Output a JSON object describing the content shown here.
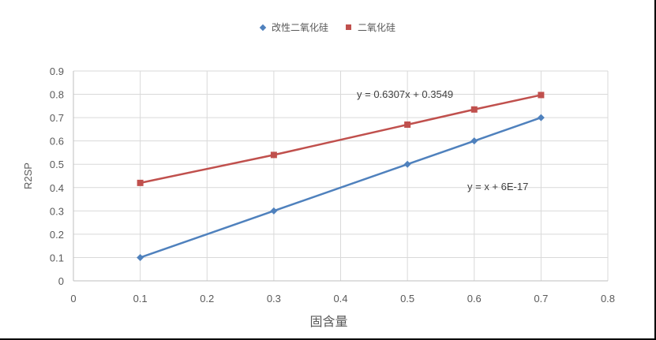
{
  "chart_data": {
    "type": "line",
    "title": "",
    "xlabel": "固含量",
    "ylabel": "R2SP",
    "xlim": [
      0,
      0.8
    ],
    "ylim": [
      0,
      0.9
    ],
    "xticks": [
      0,
      0.1,
      0.2,
      0.3,
      0.4,
      0.5,
      0.6,
      0.7,
      0.8
    ],
    "yticks": [
      0,
      0.1,
      0.2,
      0.3,
      0.4,
      0.5,
      0.6,
      0.7,
      0.8,
      0.9
    ],
    "xtick_labels": [
      "0",
      "0.1",
      "0.2",
      "0.3",
      "0.4",
      "0.5",
      "0.6",
      "0.7",
      "0.8"
    ],
    "ytick_labels": [
      "0",
      "0.1",
      "0.2",
      "0.3",
      "0.4",
      "0.5",
      "0.6",
      "0.7",
      "0.8",
      "0.9"
    ],
    "grid": "vertical-and-horizontal",
    "legend_position": "top",
    "series": [
      {
        "name": "改性二氧化硅",
        "color": "#4f81bd",
        "marker": "diamond",
        "x": [
          0.1,
          0.3,
          0.5,
          0.6,
          0.7
        ],
        "y": [
          0.1,
          0.3,
          0.5,
          0.6,
          0.7
        ],
        "trendline_label": "y = x + 6E-17"
      },
      {
        "name": "二氧化硅",
        "color": "#c0504d",
        "marker": "square",
        "x": [
          0.1,
          0.3,
          0.5,
          0.6,
          0.7
        ],
        "y": [
          0.42,
          0.54,
          0.67,
          0.735,
          0.797
        ],
        "trendline_label": "y = 0.6307x + 0.3549"
      }
    ]
  }
}
